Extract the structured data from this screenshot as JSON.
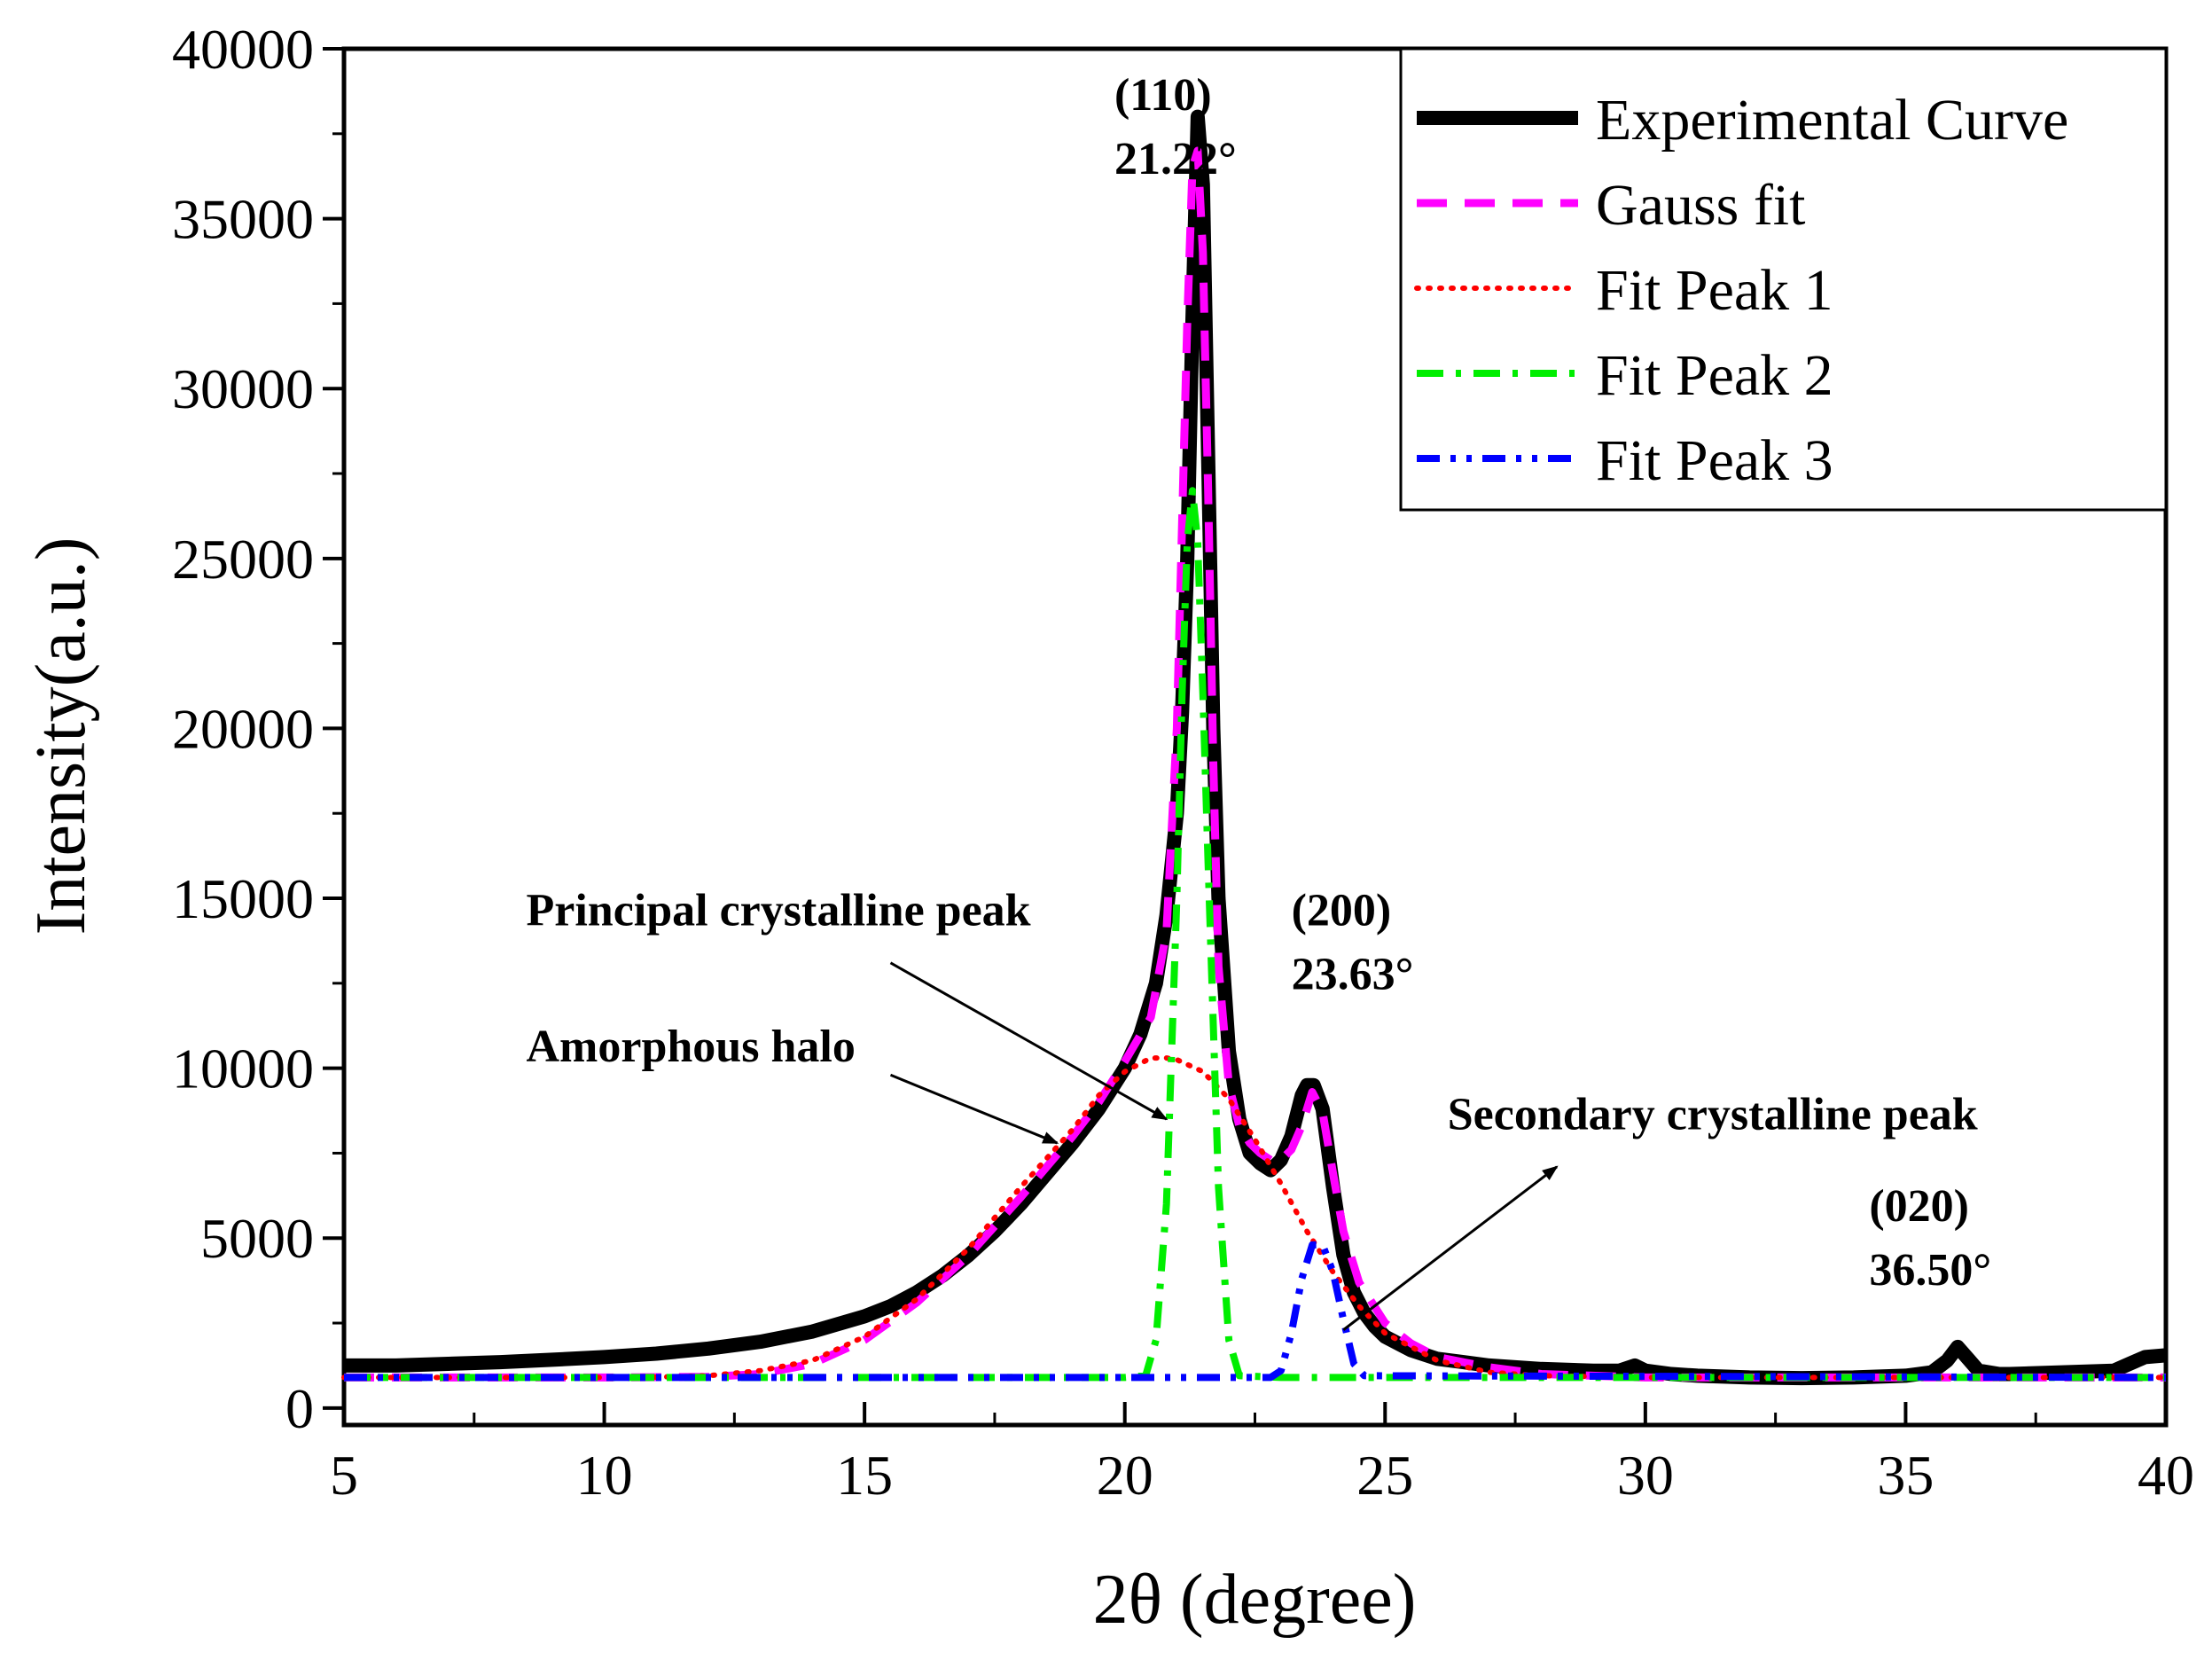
{
  "chart_data": {
    "type": "line",
    "title": "",
    "xlabel": "2θ (degree)",
    "ylabel": "Intensity(a.u.)",
    "xlim": [
      5,
      40
    ],
    "ylim": [
      -500,
      40000
    ],
    "xticks": [
      5,
      10,
      15,
      20,
      25,
      30,
      35,
      40
    ],
    "xtick_labels": [
      "5",
      "10",
      "15",
      "20",
      "25",
      "30",
      "35",
      "40"
    ],
    "yticks": [
      0,
      5000,
      10000,
      15000,
      20000,
      25000,
      30000,
      35000,
      40000
    ],
    "ytick_labels": [
      "0",
      "5000",
      "10000",
      "15000",
      "20000",
      "25000",
      "30000",
      "35000",
      "40000"
    ],
    "legend_position": "top-right",
    "series": [
      {
        "name": "Experimental Curve",
        "color": "#000000",
        "style": "solid",
        "x": [
          5,
          6,
          7,
          8,
          9,
          10,
          11,
          12,
          13,
          14,
          15,
          15.5,
          16,
          16.5,
          17,
          17.5,
          18,
          18.5,
          19,
          19.5,
          20,
          20.3,
          20.6,
          20.8,
          21,
          21.1,
          21.2,
          21.3,
          21.4,
          21.5,
          21.6,
          21.7,
          21.8,
          22,
          22.2,
          22.4,
          22.6,
          22.8,
          23,
          23.2,
          23.4,
          23.5,
          23.63,
          23.8,
          24,
          24.2,
          24.4,
          24.6,
          24.8,
          25,
          25.5,
          26,
          26.5,
          27,
          28,
          29,
          29.5,
          29.8,
          30,
          30.5,
          31,
          32,
          33,
          34,
          35,
          35.5,
          35.8,
          36,
          36.2,
          36.4,
          36.8,
          37,
          38,
          39,
          39.3,
          39.6,
          40
        ],
        "y": [
          1250,
          1250,
          1300,
          1350,
          1420,
          1500,
          1600,
          1750,
          1950,
          2250,
          2700,
          3000,
          3400,
          3900,
          4500,
          5200,
          6000,
          6900,
          7800,
          8800,
          10000,
          11000,
          12500,
          14500,
          17500,
          20500,
          25000,
          32000,
          38000,
          36000,
          28000,
          20000,
          15000,
          10500,
          8500,
          7500,
          7200,
          7000,
          7300,
          8000,
          9200,
          9500,
          9500,
          8800,
          6500,
          4500,
          3400,
          2800,
          2400,
          2100,
          1700,
          1450,
          1350,
          1250,
          1150,
          1100,
          1100,
          1250,
          1100,
          1000,
          950,
          900,
          880,
          900,
          950,
          1050,
          1400,
          1800,
          1450,
          1100,
          1000,
          1000,
          1050,
          1100,
          1300,
          1500,
          1550
        ]
      },
      {
        "name": "Gauss fit",
        "color": "#ff00ff",
        "style": "dashed",
        "x": [
          5,
          10,
          12,
          13,
          14,
          15,
          16,
          17,
          18,
          19,
          19.5,
          20,
          20.5,
          20.8,
          21,
          21.1,
          21.2,
          21.3,
          21.4,
          21.5,
          21.6,
          21.7,
          21.8,
          22,
          22.2,
          22.4,
          22.6,
          22.8,
          23,
          23.2,
          23.4,
          23.6,
          23.8,
          24,
          24.2,
          24.5,
          25,
          25.5,
          26,
          27,
          28,
          30,
          35,
          40
        ],
        "y": [
          900,
          900,
          920,
          1000,
          1300,
          2000,
          3100,
          4500,
          6200,
          8000,
          9000,
          10200,
          11500,
          14000,
          20000,
          26000,
          32000,
          36500,
          37000,
          34000,
          27000,
          19000,
          13000,
          9500,
          8300,
          7800,
          7500,
          7300,
          7300,
          7600,
          8300,
          9300,
          8700,
          6900,
          5200,
          3700,
          2500,
          1900,
          1500,
          1200,
          1000,
          900,
          900,
          900
        ]
      },
      {
        "name": "Fit Peak 1",
        "color": "#ff0000",
        "style": "dotted",
        "x": [
          5,
          10,
          11,
          12,
          13,
          14,
          15,
          16,
          17,
          18,
          19,
          19.5,
          20,
          20.5,
          20.8,
          21,
          21.5,
          22,
          22.5,
          23,
          23.5,
          24,
          24.5,
          25,
          26,
          27,
          28,
          30,
          35,
          40
        ],
        "y": [
          900,
          900,
          910,
          950,
          1100,
          1400,
          2100,
          3200,
          4700,
          6500,
          8200,
          9200,
          9900,
          10300,
          10300,
          10250,
          9900,
          9100,
          7900,
          6600,
          5200,
          4000,
          3000,
          2200,
          1400,
          1050,
          950,
          900,
          900,
          900
        ]
      },
      {
        "name": "Fit Peak 2",
        "color": "#00ee00",
        "style": "dashdot",
        "x": [
          5,
          20,
          20.4,
          20.6,
          20.8,
          21,
          21.1,
          21.2,
          21.3,
          21.4,
          21.5,
          21.6,
          21.8,
          22,
          22.2,
          23,
          40
        ],
        "y": [
          900,
          900,
          950,
          2000,
          6000,
          15000,
          21000,
          25500,
          27000,
          25500,
          21000,
          16000,
          6500,
          2000,
          950,
          900,
          900
        ],
        "label_note": ""
      },
      {
        "name": "Fit Peak 3",
        "color": "#0000ff",
        "style": "dashdotdot",
        "x": [
          5,
          22.8,
          23,
          23.2,
          23.4,
          23.6,
          23.8,
          24,
          24.2,
          24.4,
          24.6,
          40
        ],
        "y": [
          900,
          900,
          1100,
          2200,
          3800,
          4800,
          4800,
          4000,
          2600,
          1300,
          950,
          900
        ]
      }
    ],
    "annotations": [
      {
        "id": "a110",
        "lines": [
          "(110)",
          "21.22°"
        ],
        "anchor": [
          19.8,
          38200
        ]
      },
      {
        "id": "a200",
        "lines": [
          "(200)",
          "23.63°"
        ],
        "anchor": [
          23.2,
          14200
        ]
      },
      {
        "id": "a020",
        "lines": [
          "(020)",
          "36.50°"
        ],
        "anchor": [
          34.3,
          5500
        ]
      },
      {
        "id": "principal",
        "lines": [
          "Principal crystalline peak"
        ],
        "anchor": [
          8.5,
          14200
        ],
        "arrow_from": [
          15.5,
          13100
        ],
        "arrow_to": [
          20.8,
          8500
        ]
      },
      {
        "id": "amorphous",
        "lines": [
          "Amorphous halo"
        ],
        "anchor": [
          8.5,
          10200
        ],
        "arrow_from": [
          15.5,
          9800
        ],
        "arrow_to": [
          18.7,
          7800
        ]
      },
      {
        "id": "secondary",
        "lines": [
          "Secondary crystalline peak"
        ],
        "anchor": [
          26.2,
          8200
        ],
        "arrow_from": [
          24.2,
          2300
        ],
        "arrow_to": [
          28.3,
          7100
        ]
      }
    ]
  }
}
